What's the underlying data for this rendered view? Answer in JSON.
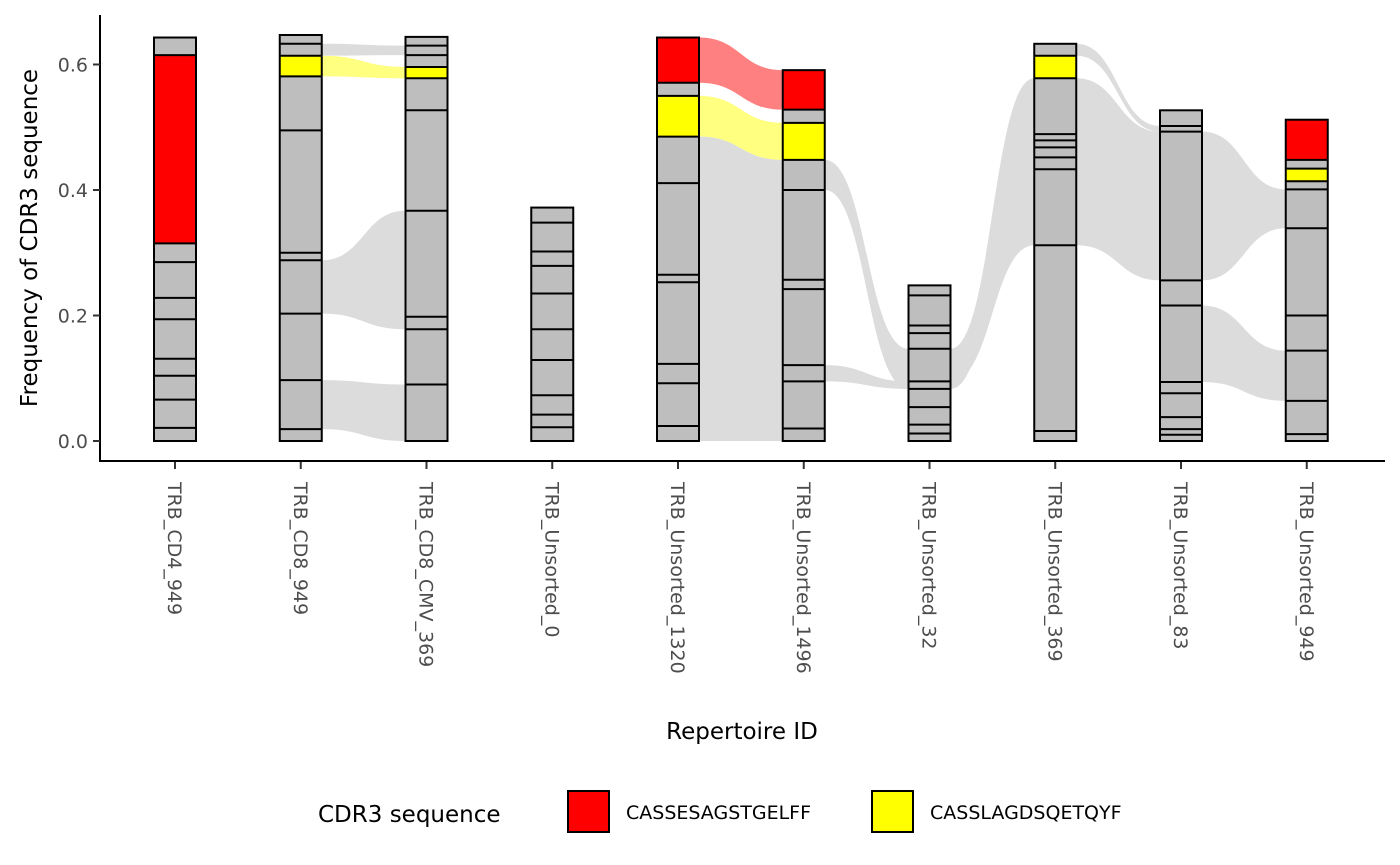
{
  "chart_data": {
    "type": "alluvial-stacked-bar",
    "xlabel": "Repertoire ID",
    "ylabel": "Frequency of CDR3 sequence",
    "ylim": [
      0,
      0.68
    ],
    "yticks": [
      "0.0",
      "0.2",
      "0.4",
      "0.6"
    ],
    "yticks_values": [
      0,
      0.2,
      0.4,
      0.6
    ],
    "grid": false,
    "legend_position": "bottom",
    "legend": {
      "title": "CDR3 sequence",
      "entries": [
        {
          "label": "CASSESAGSTGELFF",
          "color": "#FF0000"
        },
        {
          "label": "CASSLAGDSQETQYF",
          "color": "#FFFF00"
        }
      ]
    },
    "colors": {
      "other_bar": "#BEBEBE",
      "flow_grey": "#DCDCDC",
      "flow_red": "#FF8080",
      "flow_yellow": "#FFFF80",
      "outline": "#000000"
    },
    "categories": [
      "TRB_CD4_949",
      "TRB_CD8_949",
      "TRB_CD8_CMV_369",
      "TRB_Unsorted_0",
      "TRB_Unsorted_1320",
      "TRB_Unsorted_1496",
      "TRB_Unsorted_32",
      "TRB_Unsorted_369",
      "TRB_Unsorted_83",
      "TRB_Unsorted_949"
    ],
    "bars": [
      {
        "id": "TRB_CD4_949",
        "total": 0.643,
        "boundaries": [
          0.021,
          0.066,
          0.104,
          0.131,
          0.194,
          0.228,
          0.285,
          0.315,
          0.615
        ],
        "highlights": [
          {
            "from": 0.315,
            "to": 0.615,
            "seq": "CASSESAGSTGELFF"
          }
        ]
      },
      {
        "id": "TRB_CD8_949",
        "total": 0.647,
        "boundaries": [
          0.019,
          0.097,
          0.203,
          0.288,
          0.3,
          0.495,
          0.581,
          0.614,
          0.633
        ],
        "highlights": [
          {
            "from": 0.581,
            "to": 0.614,
            "seq": "CASSLAGDSQETQYF"
          }
        ]
      },
      {
        "id": "TRB_CD8_CMV_369",
        "total": 0.644,
        "boundaries": [
          0.09,
          0.178,
          0.198,
          0.367,
          0.527,
          0.578,
          0.596,
          0.615,
          0.63
        ],
        "highlights": [
          {
            "from": 0.578,
            "to": 0.596,
            "seq": "CASSLAGDSQETQYF"
          }
        ]
      },
      {
        "id": "TRB_Unsorted_0",
        "total": 0.372,
        "boundaries": [
          0.022,
          0.042,
          0.073,
          0.129,
          0.178,
          0.235,
          0.279,
          0.302,
          0.348
        ],
        "highlights": []
      },
      {
        "id": "TRB_Unsorted_1320",
        "total": 0.643,
        "boundaries": [
          0.024,
          0.092,
          0.123,
          0.253,
          0.265,
          0.411,
          0.485,
          0.55,
          0.571
        ],
        "highlights": [
          {
            "from": 0.485,
            "to": 0.55,
            "seq": "CASSLAGDSQETQYF"
          },
          {
            "from": 0.571,
            "to": 0.643,
            "seq": "CASSESAGSTGELFF"
          }
        ]
      },
      {
        "id": "TRB_Unsorted_1496",
        "total": 0.591,
        "boundaries": [
          0.02,
          0.095,
          0.121,
          0.242,
          0.257,
          0.4,
          0.448,
          0.507,
          0.528
        ],
        "highlights": [
          {
            "from": 0.448,
            "to": 0.507,
            "seq": "CASSLAGDSQETQYF"
          },
          {
            "from": 0.528,
            "to": 0.591,
            "seq": "CASSESAGSTGELFF"
          }
        ]
      },
      {
        "id": "TRB_Unsorted_32",
        "total": 0.248,
        "boundaries": [
          0.012,
          0.026,
          0.054,
          0.083,
          0.095,
          0.147,
          0.172,
          0.184,
          0.232
        ],
        "highlights": []
      },
      {
        "id": "TRB_Unsorted_369",
        "total": 0.633,
        "boundaries": [
          0.016,
          0.312,
          0.433,
          0.452,
          0.468,
          0.479,
          0.489,
          0.578,
          0.614
        ],
        "highlights": [
          {
            "from": 0.578,
            "to": 0.614,
            "seq": "CASSLAGDSQETQYF"
          }
        ]
      },
      {
        "id": "TRB_Unsorted_83",
        "total": 0.527,
        "boundaries": [
          0.01,
          0.019,
          0.038,
          0.076,
          0.094,
          0.216,
          0.256,
          0.493,
          0.502
        ],
        "highlights": []
      },
      {
        "id": "TRB_Unsorted_949",
        "total": 0.512,
        "boundaries": [
          0.011,
          0.064,
          0.144,
          0.2,
          0.339,
          0.401,
          0.414,
          0.434,
          0.448
        ],
        "highlights": [
          {
            "from": 0.414,
            "to": 0.434,
            "seq": "CASSLAGDSQETQYF"
          },
          {
            "from": 0.448,
            "to": 0.512,
            "seq": "CASSESAGSTGELFF"
          }
        ]
      }
    ],
    "flows": [
      {
        "from_bar": 1,
        "to_bar": 2,
        "left": [
          0.581,
          0.614
        ],
        "right": [
          0.578,
          0.596
        ],
        "color": "flow_yellow"
      },
      {
        "from_bar": 1,
        "to_bar": 2,
        "left": [
          0.614,
          0.633
        ],
        "right": [
          0.615,
          0.63
        ],
        "color": "flow_grey"
      },
      {
        "from_bar": 1,
        "to_bar": 2,
        "left": [
          0.203,
          0.288
        ],
        "right": [
          0.178,
          0.367
        ],
        "color": "flow_grey"
      },
      {
        "from_bar": 1,
        "to_bar": 2,
        "left": [
          0.019,
          0.097
        ],
        "right": [
          0.0,
          0.09
        ],
        "color": "flow_grey"
      },
      {
        "from_bar": 4,
        "to_bar": 5,
        "left": [
          0.571,
          0.643
        ],
        "right": [
          0.528,
          0.591
        ],
        "color": "flow_red"
      },
      {
        "from_bar": 4,
        "to_bar": 5,
        "left": [
          0.485,
          0.55
        ],
        "right": [
          0.448,
          0.507
        ],
        "color": "flow_yellow"
      },
      {
        "from_bar": 4,
        "to_bar": 5,
        "left": [
          0.0,
          0.485
        ],
        "right": [
          0.0,
          0.448
        ],
        "color": "flow_grey"
      },
      {
        "from_bar": 5,
        "to_bar": 6,
        "left": [
          0.4,
          0.448
        ],
        "right": [
          0.083,
          0.147
        ],
        "color": "flow_grey"
      },
      {
        "from_bar": 5,
        "to_bar": 6,
        "left": [
          0.095,
          0.121
        ],
        "right": [
          0.083,
          0.095
        ],
        "color": "flow_grey"
      },
      {
        "from_bar": 6,
        "to_bar": 7,
        "left": [
          0.083,
          0.147
        ],
        "right": [
          0.433,
          0.578
        ],
        "color": "flow_grey"
      },
      {
        "from_bar": 6,
        "to_bar": 7,
        "left": [
          0.095,
          0.147
        ],
        "right": [
          0.312,
          0.452
        ],
        "color": "flow_grey"
      },
      {
        "from_bar": 7,
        "to_bar": 8,
        "left": [
          0.312,
          0.578
        ],
        "right": [
          0.256,
          0.493
        ],
        "color": "flow_grey"
      },
      {
        "from_bar": 7,
        "to_bar": 8,
        "left": [
          0.614,
          0.633
        ],
        "right": [
          0.493,
          0.502
        ],
        "color": "flow_grey"
      },
      {
        "from_bar": 8,
        "to_bar": 9,
        "left": [
          0.256,
          0.493
        ],
        "right": [
          0.339,
          0.401
        ],
        "color": "flow_grey"
      },
      {
        "from_bar": 8,
        "to_bar": 9,
        "left": [
          0.094,
          0.216
        ],
        "right": [
          0.064,
          0.144
        ],
        "color": "flow_grey"
      }
    ]
  }
}
